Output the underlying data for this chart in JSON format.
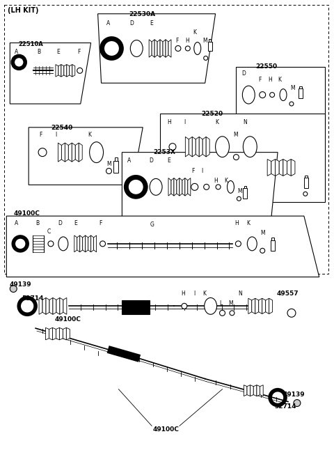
{
  "bg_color": "#ffffff",
  "line_color": "#000000",
  "parts": {
    "lh_kit": "(LH KIT)",
    "p22510A": "22510A",
    "p22530A": "22530A",
    "p22540": "22540",
    "p22550": "22550",
    "p22520": "22520",
    "p2253X": "2253X",
    "p49100C_a": "49100C",
    "p49100C_b": "49100C",
    "p49100C_c": "49100C",
    "p49139_a": "49139",
    "p49139_b": "49139",
    "p52714_a": "52714",
    "p52714_b": "52714",
    "p49557": "49557"
  }
}
